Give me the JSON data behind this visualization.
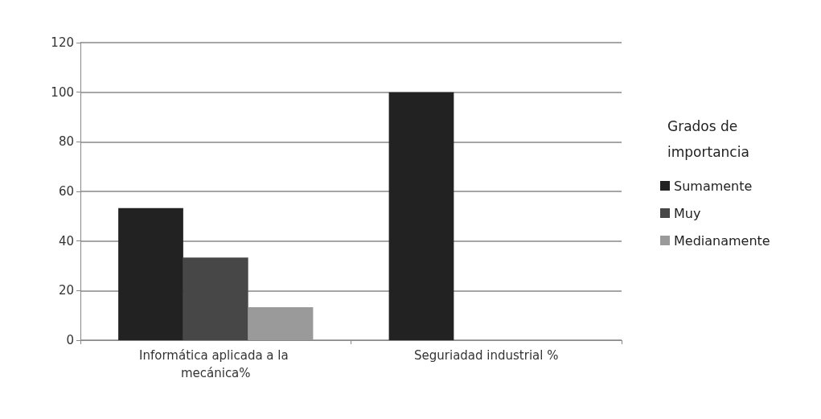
{
  "chart_data": {
    "type": "bar",
    "legend_title": "Grados de importancia",
    "categories": [
      "Informática aplicada a la mecánica%",
      "Seguriadad industrial %"
    ],
    "series": [
      {
        "name": "Sumamente",
        "color": "#222222",
        "values": [
          53.3,
          100
        ]
      },
      {
        "name": "Muy",
        "color": "#474747",
        "values": [
          33.3,
          0
        ]
      },
      {
        "name": "Medianamente",
        "color": "#9a9a9a",
        "values": [
          13.3,
          0
        ]
      }
    ],
    "ylim": [
      0,
      120
    ],
    "yticks": [
      0,
      20,
      40,
      60,
      80,
      100,
      120
    ],
    "grid": "y",
    "legend": "right"
  }
}
